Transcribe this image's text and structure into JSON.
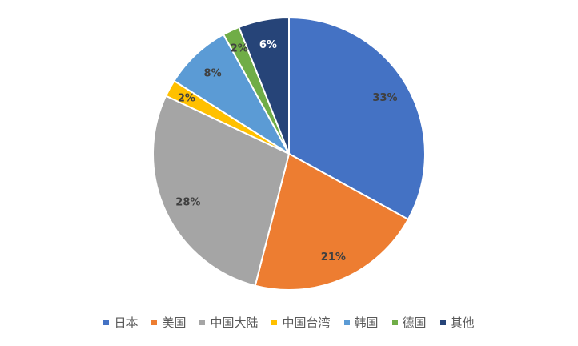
{
  "chart_data": {
    "type": "pie",
    "categories": [
      "日本",
      "美国",
      "中国大陆",
      "中国台湾",
      "韩国",
      "德国",
      "其他"
    ],
    "values": [
      33,
      21,
      28,
      2,
      8,
      2,
      6
    ],
    "data_labels": [
      "33%",
      "21%",
      "28%",
      "2%",
      "8%",
      "2%",
      "6%"
    ],
    "colors": [
      "#4472C4",
      "#ED7D31",
      "#A5A5A5",
      "#FFC000",
      "#5B9BD5",
      "#70AD47",
      "#264478"
    ],
    "label_colors": [
      "#404040",
      "#404040",
      "#404040",
      "#404040",
      "#404040",
      "#404040",
      "#FFFFFF"
    ],
    "start_angle": "top, clockwise",
    "legend_position": "bottom"
  }
}
